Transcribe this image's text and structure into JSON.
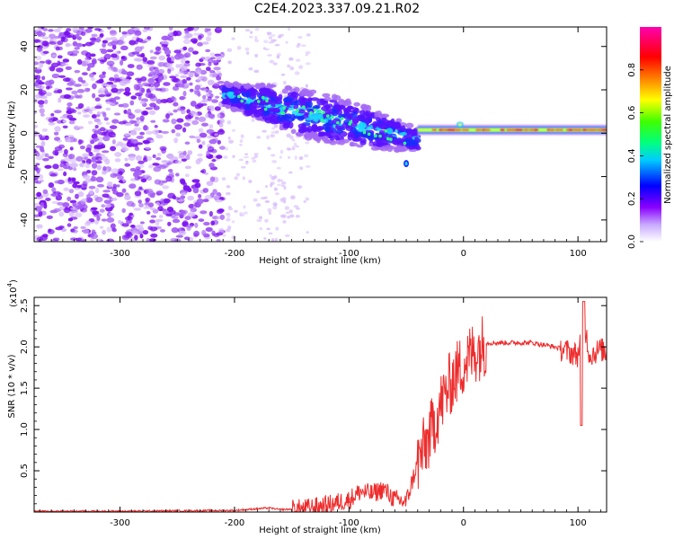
{
  "title": "C2E4.2023.337.09.21.R02",
  "chart_data": [
    {
      "type": "heatmap",
      "xlabel": "Height of straight line (km)",
      "ylabel": "Frequency (Hz)",
      "xlim": [
        -375,
        125
      ],
      "ylim": [
        -50,
        49
      ],
      "xticks": [
        -300,
        -200,
        -100,
        0,
        100
      ],
      "yticks": [
        -40,
        -20,
        0,
        20,
        40
      ],
      "colorbar": {
        "label": "Normalized spectral amplitude",
        "range": [
          0.0,
          1.0
        ],
        "ticks": [
          "0.0",
          "0.2",
          "0.4",
          "0.6",
          "0.8"
        ],
        "colormap": [
          "#ffffff",
          "#8a00ff",
          "#0000ff",
          "#00ffff",
          "#00ff00",
          "#ffff00",
          "#ff8000",
          "#ff0000",
          "#ff00ff"
        ]
      },
      "regions": [
        {
          "x_range": [
            -375,
            -210
          ],
          "description": "broadband noise",
          "amplitude": 0.1
        },
        {
          "x_range": [
            -210,
            -40
          ],
          "f_start": 18,
          "f_end": -3,
          "peak_amplitude": 0.4
        },
        {
          "x_range": [
            -40,
            125
          ],
          "f_center": 1.5,
          "peak_amplitude": 0.9
        }
      ]
    },
    {
      "type": "line",
      "xlabel": "Height of straight line (km)",
      "ylabel": "SNR (10 * v/v)",
      "multiplier": "(x10",
      "multiplier_exp": "4",
      "multiplier_close": ")",
      "xlim": [
        -375,
        125
      ],
      "ylim": [
        0,
        2.6
      ],
      "xticks": [
        -300,
        -200,
        -100,
        0,
        100
      ],
      "yticks": [
        "0.5",
        "1.0",
        "1.5",
        "2.0",
        "2.5"
      ],
      "color": "#ee2c2c",
      "x": [
        -375,
        -300,
        -200,
        -170,
        -160,
        -140,
        -120,
        -100,
        -90,
        -80,
        -70,
        -60,
        -50,
        -40,
        -30,
        -20,
        -10,
        0,
        10,
        20,
        40,
        60,
        80,
        90,
        100,
        105,
        110,
        120,
        125
      ],
      "y": [
        0.01,
        0.01,
        0.02,
        0.05,
        0.03,
        0.04,
        0.08,
        0.15,
        0.25,
        0.22,
        0.28,
        0.15,
        0.12,
        0.6,
        0.9,
        1.3,
        1.6,
        1.8,
        1.95,
        2.05,
        2.05,
        2.05,
        2.0,
        1.95,
        1.9,
        2.35,
        1.9,
        1.97,
        1.93
      ]
    }
  ]
}
